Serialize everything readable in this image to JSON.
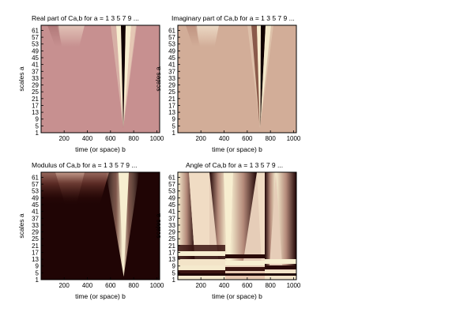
{
  "chart_data": [
    {
      "type": "heatmap",
      "title": "Real part of Ca,b for a =  1 3 5 7 9 ...",
      "xlabel": "time (or space) b",
      "ylabel": "scales a",
      "xlim": [
        1,
        1024
      ],
      "ylim": [
        1,
        64
      ],
      "xticks": [
        200,
        400,
        600,
        800,
        1000
      ],
      "yticks": [
        1,
        5,
        9,
        13,
        17,
        21,
        25,
        29,
        33,
        37,
        41,
        45,
        49,
        53,
        57,
        61
      ],
      "palette": [
        "#c79090",
        "#f7eed0",
        "#100000"
      ]
    },
    {
      "type": "heatmap",
      "title": "Imaginary part of Ca,b for a =  1 3 5 7 9 ...",
      "xlabel": "time (or space) b",
      "ylabel": "scales a",
      "xlim": [
        1,
        1024
      ],
      "ylim": [
        1,
        64
      ],
      "xticks": [
        200,
        400,
        600,
        800,
        1000
      ],
      "yticks": [
        1,
        5,
        9,
        13,
        17,
        21,
        25,
        29,
        33,
        37,
        41,
        45,
        49,
        53,
        57,
        61
      ],
      "palette": [
        "#d2ad98",
        "#f7eed0",
        "#100000"
      ]
    },
    {
      "type": "heatmap",
      "title": "Modulus of Ca,b for a =  1 3 5 7 9 ...",
      "xlabel": "time (or space) b",
      "ylabel": "scales a",
      "xlim": [
        1,
        1024
      ],
      "ylim": [
        1,
        64
      ],
      "xticks": [
        200,
        400,
        600,
        800,
        1000
      ],
      "yticks": [
        1,
        5,
        9,
        13,
        17,
        21,
        25,
        29,
        33,
        37,
        41,
        45,
        49,
        53,
        57,
        61
      ],
      "palette": [
        "#200505",
        "#f7eed0"
      ]
    },
    {
      "type": "heatmap",
      "title": "Angle of Ca,b for a =  1 3 5 7 9 ...",
      "xlabel": "time (or space) b",
      "ylabel": "scales a",
      "xlim": [
        1,
        1024
      ],
      "ylim": [
        1,
        64
      ],
      "xticks": [
        200,
        400,
        600,
        800,
        1000
      ],
      "yticks": [
        1,
        5,
        9,
        13,
        17,
        21,
        25,
        29,
        33,
        37,
        41,
        45,
        49,
        53,
        57,
        61
      ],
      "palette": [
        "#200505",
        "#f7eed0"
      ]
    }
  ]
}
